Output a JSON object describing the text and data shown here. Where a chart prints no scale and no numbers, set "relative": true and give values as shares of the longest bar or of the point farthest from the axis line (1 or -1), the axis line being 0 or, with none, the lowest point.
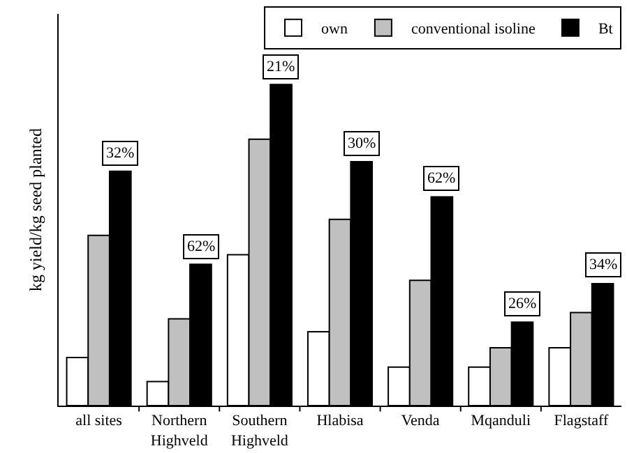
{
  "chart_data": {
    "type": "bar",
    "relative": true,
    "ylabel": "kg yield/kg seed planted",
    "categories": [
      "all sites",
      "Northern\nHighveld",
      "Southern\nHighveld",
      "Hlabisa",
      "Venda",
      "Mqanduli",
      "Flagstaff"
    ],
    "series": [
      {
        "name": "own",
        "color": "#ffffff",
        "values": [
          0.15,
          0.075,
          0.47,
          0.23,
          0.12,
          0.12,
          0.18
        ]
      },
      {
        "name": "conventional isoline",
        "color": "#c0c0c0",
        "values": [
          0.53,
          0.27,
          0.83,
          0.58,
          0.39,
          0.18,
          0.29
        ]
      },
      {
        "name": "Bt",
        "color": "#000000",
        "values": [
          0.73,
          0.44,
          1,
          0.76,
          0.65,
          0.26,
          0.38
        ]
      }
    ],
    "annotations": [
      "32%",
      "62%",
      "21%",
      "30%",
      "62%",
      "26%",
      "34%"
    ],
    "legend": "top right",
    "grid": false
  }
}
